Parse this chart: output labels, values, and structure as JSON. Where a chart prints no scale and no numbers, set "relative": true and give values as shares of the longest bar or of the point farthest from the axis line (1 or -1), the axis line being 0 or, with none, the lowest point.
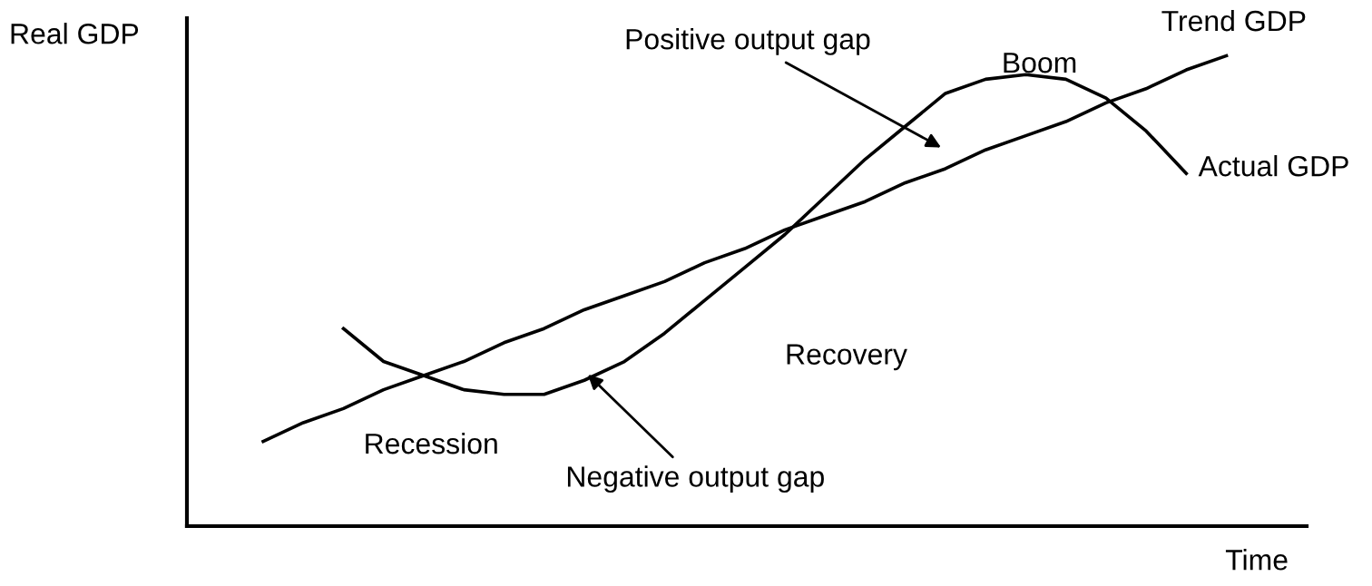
{
  "chart_data": {
    "type": "line",
    "relative": true,
    "ylabel": "Real GDP",
    "xlabel": "Time",
    "categories": [
      null,
      null,
      null,
      null,
      null,
      null,
      null,
      null,
      null,
      null,
      null,
      null,
      null,
      null,
      null,
      null,
      null,
      null,
      null,
      null,
      null,
      null,
      null,
      null,
      null
    ],
    "series": [
      {
        "name": "Trend GDP",
        "color": "#000000",
        "values": [
          0.18,
          0.22,
          0.25,
          0.29,
          0.32,
          0.35,
          0.39,
          0.42,
          0.46,
          0.49,
          0.52,
          0.56,
          0.59,
          0.63,
          0.66,
          0.69,
          0.73,
          0.76,
          0.8,
          0.83,
          0.86,
          0.9,
          0.93,
          0.97,
          1.0
        ]
      },
      {
        "name": "Actual GDP",
        "color": "#000000",
        "values": [
          null,
          null,
          0.42,
          0.35,
          0.32,
          0.29,
          0.28,
          0.28,
          0.31,
          0.35,
          0.41,
          0.48,
          0.55,
          0.62,
          0.7,
          0.78,
          0.85,
          0.92,
          0.95,
          0.96,
          0.95,
          0.91,
          0.84,
          0.75,
          null
        ]
      }
    ],
    "annotations": [
      "Positive output gap",
      "Boom",
      "Recovery",
      "Recession",
      "Negative output gap"
    ],
    "marker": "none",
    "line_style": "solid"
  }
}
